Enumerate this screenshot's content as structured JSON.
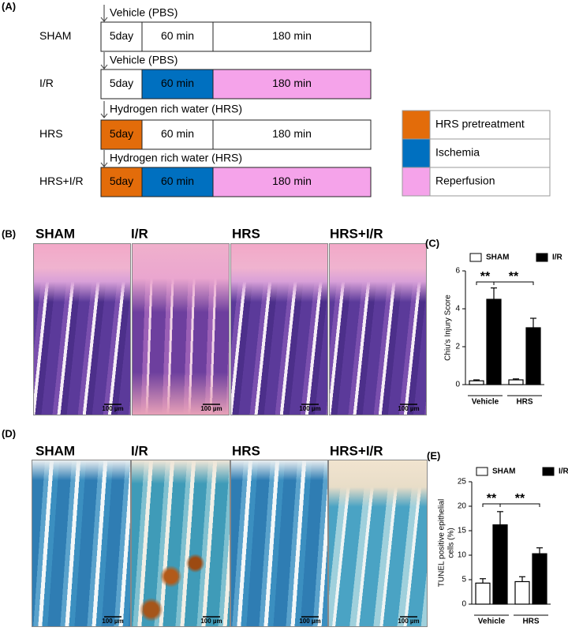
{
  "panel_labels": [
    "(A)",
    "(B)",
    "(C)",
    "(D)",
    "(E)"
  ],
  "timeline": {
    "rows": [
      {
        "treatment": "Vehicle (PBS)",
        "group": "SHAM",
        "segments": [
          "5day",
          "60 min",
          "180 min"
        ],
        "colors": [
          "#ffffff",
          "#ffffff",
          "#ffffff"
        ]
      },
      {
        "treatment": "Vehicle (PBS)",
        "group": "I/R",
        "segments": [
          "5day",
          "60 min",
          "180 min"
        ],
        "colors": [
          "#ffffff",
          "#0070c0",
          "#f5a3ea"
        ]
      },
      {
        "treatment": "Hydrogen rich water (HRS)",
        "group": "HRS",
        "segments": [
          "5day",
          "60 min",
          "180 min"
        ],
        "colors": [
          "#e36c0a",
          "#ffffff",
          "#ffffff"
        ]
      },
      {
        "treatment": "Hydrogen rich water (HRS)",
        "group": "HRS+I/R",
        "segments": [
          "5day",
          "60 min",
          "180 min"
        ],
        "colors": [
          "#e36c0a",
          "#0070c0",
          "#f5a3ea"
        ]
      }
    ],
    "legend": [
      {
        "label": "HRS pretreatment",
        "color": "#e36c0a"
      },
      {
        "label": "Ischemia",
        "color": "#0070c0"
      },
      {
        "label": "Reperfusion",
        "color": "#f5a3ea"
      }
    ]
  },
  "he_images": {
    "titles": [
      "SHAM",
      "I/R",
      "HRS",
      "HRS+I/R"
    ],
    "scale_bar": "100 µm"
  },
  "tunel_images": {
    "titles": [
      "SHAM",
      "I/R",
      "HRS",
      "HRS+I/R"
    ],
    "scale_bar": "100 µm"
  },
  "chart_data": [
    {
      "type": "bar",
      "ylabel": [
        "Chiu's Injury Score"
      ],
      "categories": [
        "Vehicle",
        "HRS"
      ],
      "series": [
        {
          "name": "SHAM",
          "color": "#ffffff",
          "values": [
            0.2,
            0.25
          ],
          "errors": [
            0.05,
            0.05
          ]
        },
        {
          "name": "I/R",
          "color": "#000000",
          "values": [
            4.5,
            3.0
          ],
          "errors": [
            0.6,
            0.5
          ]
        }
      ],
      "ylim": [
        0,
        6
      ],
      "yticks": [
        0,
        2,
        4,
        6
      ],
      "significance_labels": [
        "**",
        "**"
      ]
    },
    {
      "type": "bar",
      "ylabel": [
        "TUNEL positive epithelial",
        "cells (%)"
      ],
      "categories": [
        "Vehicle",
        "HRS"
      ],
      "series": [
        {
          "name": "SHAM",
          "color": "#ffffff",
          "values": [
            4.3,
            4.6
          ],
          "errors": [
            0.9,
            1.0
          ]
        },
        {
          "name": "I/R",
          "color": "#000000",
          "values": [
            16.2,
            10.3
          ],
          "errors": [
            2.7,
            1.2
          ]
        }
      ],
      "ylim": [
        0,
        25
      ],
      "yticks": [
        0,
        5,
        10,
        15,
        20,
        25
      ],
      "significance_labels": [
        "**",
        "**"
      ]
    }
  ]
}
